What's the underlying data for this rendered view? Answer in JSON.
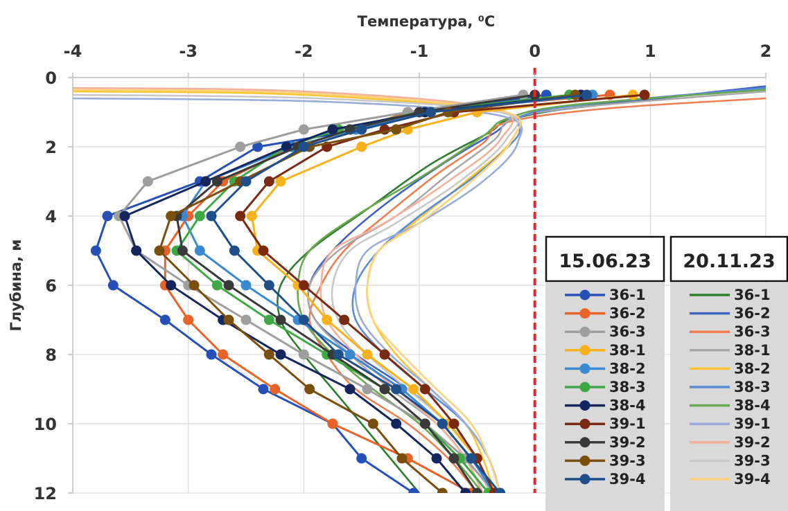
{
  "chart_data": {
    "type": "line",
    "xlabel": "Температура, ⁰С",
    "ylabel": "Глубина, м",
    "xlim": [
      -4,
      2
    ],
    "ylim": [
      0,
      12
    ],
    "y_inverted": true,
    "x_axis_position": "top",
    "grid": true,
    "x_ticks": [
      "-4",
      "-3",
      "-2",
      "-1",
      "0",
      "1",
      "2"
    ],
    "y_ticks": [
      "0",
      "2",
      "4",
      "6",
      "8",
      "10",
      "12"
    ],
    "reference_line": {
      "x": 0,
      "color": "#e8262a",
      "style": "dashed"
    },
    "legend_groups": [
      {
        "title": "15.06.23",
        "markers": true
      },
      {
        "title": "20.11.23",
        "markers": false
      }
    ],
    "series": [
      {
        "name": "36-1",
        "group": 0,
        "color": "#2650b8",
        "x": [
          0.1,
          -1.0,
          -1.5,
          -2.4,
          -2.9,
          -3.7,
          -3.8,
          -3.65,
          -3.2,
          -2.8,
          -2.35,
          -1.75,
          -1.5,
          -1.05
        ],
        "y": [
          0.5,
          1.0,
          1.5,
          2.0,
          3.0,
          4.0,
          5.0,
          6.0,
          7.0,
          8.0,
          9.0,
          10.0,
          11.0,
          12.0
        ]
      },
      {
        "name": "36-2",
        "group": 0,
        "color": "#e8622a",
        "x": [
          0.65,
          -1.1,
          -1.55,
          -2.1,
          -2.7,
          -3.0,
          -3.2,
          -3.2,
          -3.0,
          -2.7,
          -2.25,
          -1.75,
          -1.1,
          -0.55
        ],
        "y": [
          0.5,
          1.0,
          1.5,
          2.0,
          3.0,
          4.0,
          5.0,
          6.0,
          7.0,
          8.0,
          9.0,
          10.0,
          11.0,
          12.0
        ]
      },
      {
        "name": "36-3",
        "group": 0,
        "color": "#9e9e9e",
        "x": [
          -0.1,
          -1.1,
          -2.0,
          -2.55,
          -3.35,
          -3.6,
          -3.45,
          -3.0,
          -2.5,
          -2.0,
          -1.45,
          -0.95,
          -0.6,
          -0.35
        ],
        "y": [
          0.5,
          1.0,
          1.5,
          2.0,
          3.0,
          4.0,
          5.0,
          6.0,
          7.0,
          8.0,
          9.0,
          10.0,
          11.0,
          12.0
        ]
      },
      {
        "name": "38-1",
        "group": 0,
        "color": "#f7b21b",
        "x": [
          0.85,
          -0.5,
          -1.1,
          -1.5,
          -2.2,
          -2.45,
          -2.4,
          -2.05,
          -1.8,
          -1.45,
          -1.05,
          -0.75,
          -0.5,
          -0.35
        ],
        "y": [
          0.5,
          1.0,
          1.5,
          2.0,
          3.0,
          4.0,
          5.0,
          6.0,
          7.0,
          8.0,
          9.0,
          10.0,
          11.0,
          12.0
        ]
      },
      {
        "name": "38-2",
        "group": 0,
        "color": "#3a88d0",
        "x": [
          0.5,
          -0.9,
          -1.55,
          -2.1,
          -2.85,
          -3.05,
          -2.9,
          -2.5,
          -2.05,
          -1.6,
          -1.15,
          -0.8,
          -0.55,
          -0.35
        ],
        "y": [
          0.5,
          1.0,
          1.5,
          2.0,
          3.0,
          4.0,
          5.0,
          6.0,
          7.0,
          8.0,
          9.0,
          10.0,
          11.0,
          12.0
        ]
      },
      {
        "name": "38-3",
        "group": 0,
        "color": "#3fa845",
        "x": [
          0.3,
          -1.0,
          -1.7,
          -2.15,
          -2.6,
          -2.9,
          -3.1,
          -2.75,
          -2.3,
          -1.8,
          -1.3,
          -0.95,
          -0.65,
          -0.4
        ],
        "y": [
          0.5,
          1.0,
          1.5,
          2.0,
          3.0,
          4.0,
          5.0,
          6.0,
          7.0,
          8.0,
          9.0,
          10.0,
          11.0,
          12.0
        ]
      },
      {
        "name": "38-4",
        "group": 0,
        "color": "#15265e",
        "x": [
          0.4,
          -0.95,
          -1.75,
          -2.15,
          -2.85,
          -3.55,
          -3.45,
          -3.15,
          -2.7,
          -2.2,
          -1.6,
          -1.2,
          -0.85,
          -0.6
        ],
        "y": [
          0.5,
          1.0,
          1.5,
          2.0,
          3.0,
          4.0,
          5.0,
          6.0,
          7.0,
          8.0,
          9.0,
          10.0,
          11.0,
          12.0
        ]
      },
      {
        "name": "39-1",
        "group": 0,
        "color": "#7a2a10",
        "x": [
          0.95,
          -0.7,
          -1.3,
          -1.8,
          -2.3,
          -2.55,
          -2.35,
          -2.0,
          -1.65,
          -1.3,
          -0.95,
          -0.7,
          -0.5,
          -0.35
        ],
        "y": [
          0.5,
          1.0,
          1.5,
          2.0,
          3.0,
          4.0,
          5.0,
          6.0,
          7.0,
          8.0,
          9.0,
          10.0,
          11.0,
          12.0
        ]
      },
      {
        "name": "39-2",
        "group": 0,
        "color": "#3a3a3a",
        "x": [
          0.0,
          -1.0,
          -1.6,
          -2.05,
          -2.75,
          -3.1,
          -3.05,
          -2.65,
          -2.2,
          -1.75,
          -1.3,
          -0.95,
          -0.7,
          -0.5
        ],
        "y": [
          0.5,
          1.0,
          1.5,
          2.0,
          3.0,
          4.0,
          5.0,
          6.0,
          7.0,
          8.0,
          9.0,
          10.0,
          11.0,
          12.0
        ]
      },
      {
        "name": "39-3",
        "group": 0,
        "color": "#7a4f0e",
        "x": [
          0.35,
          -0.75,
          -1.2,
          -1.95,
          -2.55,
          -3.15,
          -3.25,
          -2.95,
          -2.65,
          -2.3,
          -1.95,
          -1.4,
          -1.15,
          -0.8
        ],
        "y": [
          0.5,
          1.0,
          1.5,
          2.0,
          3.0,
          4.0,
          5.0,
          6.0,
          7.0,
          8.0,
          9.0,
          10.0,
          11.0,
          12.0
        ]
      },
      {
        "name": "39-4",
        "group": 0,
        "color": "#1f4f8a",
        "x": [
          0.45,
          -0.9,
          -1.5,
          -2.0,
          -2.5,
          -2.8,
          -2.6,
          -2.3,
          -2.0,
          -1.7,
          -1.2,
          -0.8,
          -0.55,
          -0.3
        ],
        "y": [
          0.5,
          1.0,
          1.5,
          2.0,
          3.0,
          4.0,
          5.0,
          6.0,
          7.0,
          8.0,
          9.0,
          10.0,
          11.0,
          12.0
        ]
      },
      {
        "name": "36-1",
        "group": 1,
        "color": "#2e7d2e",
        "x": [
          2.0,
          0.5,
          -0.2,
          -0.4,
          -0.9,
          -1.45,
          -1.95,
          -2.2,
          -2.2,
          -2.0,
          -1.75,
          -1.5,
          -1.25,
          -1.0
        ],
        "y": [
          0.3,
          0.8,
          1.2,
          1.6,
          2.5,
          3.8,
          5.0,
          6.0,
          7.0,
          8.0,
          9.0,
          10.0,
          11.0,
          12.0
        ]
      },
      {
        "name": "36-2",
        "group": 1,
        "color": "#4062c0",
        "x": [
          2.0,
          0.8,
          -0.1,
          -0.35,
          -0.8,
          -1.35,
          -1.75,
          -1.95,
          -1.9,
          -1.55,
          -1.1,
          -0.75,
          -0.5,
          -0.4
        ],
        "y": [
          0.25,
          0.7,
          1.1,
          1.6,
          2.5,
          3.8,
          5.0,
          6.0,
          7.0,
          8.0,
          9.0,
          10.0,
          11.0,
          12.0
        ]
      },
      {
        "name": "36-3",
        "group": 1,
        "color": "#ef7d4f",
        "x": [
          2.0,
          0.6,
          -0.25,
          -0.45,
          -0.85,
          -1.3,
          -1.65,
          -1.85,
          -1.95,
          -1.8,
          -1.55,
          -1.1,
          -0.75,
          -0.5
        ],
        "y": [
          0.6,
          0.9,
          1.3,
          1.9,
          2.8,
          4.0,
          5.0,
          6.0,
          7.0,
          8.0,
          9.0,
          10.0,
          11.0,
          12.0
        ]
      },
      {
        "name": "38-1",
        "group": 1,
        "color": "#a8a8a8",
        "x": [
          2.0,
          0.4,
          -0.2,
          -0.35,
          -0.75,
          -1.2,
          -1.7,
          -1.95,
          -1.9,
          -1.6,
          -1.25,
          -0.85,
          -0.6,
          -0.45
        ],
        "y": [
          0.4,
          0.85,
          1.2,
          1.8,
          2.8,
          4.0,
          5.0,
          6.0,
          7.0,
          8.0,
          9.0,
          10.0,
          11.0,
          12.0
        ]
      },
      {
        "name": "38-2",
        "group": 1,
        "color": "#fbc531",
        "x": [
          -4.0,
          -2.0,
          -0.3,
          -0.2,
          -0.6,
          -1.05,
          -1.35,
          -1.45,
          -1.4,
          -1.2,
          -0.9,
          -0.6,
          -0.45,
          -0.35
        ],
        "y": [
          0.4,
          0.5,
          1.0,
          1.8,
          3.0,
          4.2,
          5.0,
          6.0,
          7.0,
          8.0,
          9.0,
          10.0,
          11.0,
          12.0
        ]
      },
      {
        "name": "38-3",
        "group": 1,
        "color": "#5a8ad8",
        "x": [
          2.0,
          0.5,
          -0.1,
          -0.15,
          -0.5,
          -1.0,
          -1.35,
          -1.55,
          -1.55,
          -1.3,
          -0.95,
          -0.6,
          -0.4,
          -0.3
        ],
        "y": [
          0.3,
          0.75,
          1.1,
          1.7,
          2.8,
          4.0,
          5.0,
          6.0,
          7.0,
          8.0,
          9.0,
          10.0,
          11.0,
          12.0
        ]
      },
      {
        "name": "38-4",
        "group": 1,
        "color": "#6aa84f",
        "x": [
          2.0,
          0.3,
          -0.25,
          -0.45,
          -0.95,
          -1.55,
          -1.95,
          -2.05,
          -2.0,
          -1.75,
          -1.4,
          -1.0,
          -0.7,
          -0.45
        ],
        "y": [
          0.35,
          0.8,
          1.2,
          1.7,
          2.8,
          4.0,
          5.0,
          6.0,
          7.0,
          8.0,
          9.0,
          10.0,
          11.0,
          12.0
        ]
      },
      {
        "name": "39-1",
        "group": 1,
        "color": "#97acd8",
        "x": [
          -4.0,
          -1.8,
          -0.3,
          -0.15,
          -0.45,
          -1.0,
          -1.45,
          -1.55,
          -1.5,
          -1.25,
          -0.9,
          -0.6,
          -0.4,
          -0.3
        ],
        "y": [
          0.6,
          0.7,
          1.1,
          1.9,
          3.0,
          4.2,
          5.0,
          6.0,
          7.0,
          8.0,
          9.0,
          10.0,
          11.0,
          12.0
        ]
      },
      {
        "name": "39-2",
        "group": 1,
        "color": "#f4b09a",
        "x": [
          -4.0,
          -2.0,
          -0.35,
          -0.3,
          -0.75,
          -1.3,
          -1.75,
          -1.85,
          -1.8,
          -1.55,
          -1.2,
          -0.85,
          -0.6,
          -0.45
        ],
        "y": [
          0.3,
          0.4,
          0.9,
          1.8,
          3.0,
          4.2,
          5.0,
          6.0,
          7.0,
          8.0,
          9.0,
          10.0,
          11.0,
          12.0
        ]
      },
      {
        "name": "39-3",
        "group": 1,
        "color": "#c8c8c8",
        "x": [
          -4.0,
          -1.9,
          -0.3,
          -0.25,
          -0.65,
          -1.2,
          -1.6,
          -1.75,
          -1.7,
          -1.45,
          -1.1,
          -0.75,
          -0.5,
          -0.4
        ],
        "y": [
          0.5,
          0.6,
          1.0,
          1.8,
          3.0,
          4.2,
          5.0,
          6.0,
          7.0,
          8.0,
          9.0,
          10.0,
          11.0,
          12.0
        ]
      },
      {
        "name": "39-4",
        "group": 1,
        "color": "#fcd27e",
        "x": [
          -4.0,
          -2.0,
          -0.3,
          -0.2,
          -0.55,
          -1.0,
          -1.35,
          -1.45,
          -1.4,
          -1.15,
          -0.85,
          -0.55,
          -0.4,
          -0.3
        ],
        "y": [
          0.35,
          0.45,
          0.95,
          1.8,
          3.0,
          4.2,
          5.0,
          6.0,
          7.0,
          8.0,
          9.0,
          10.0,
          11.0,
          12.0
        ]
      }
    ]
  }
}
